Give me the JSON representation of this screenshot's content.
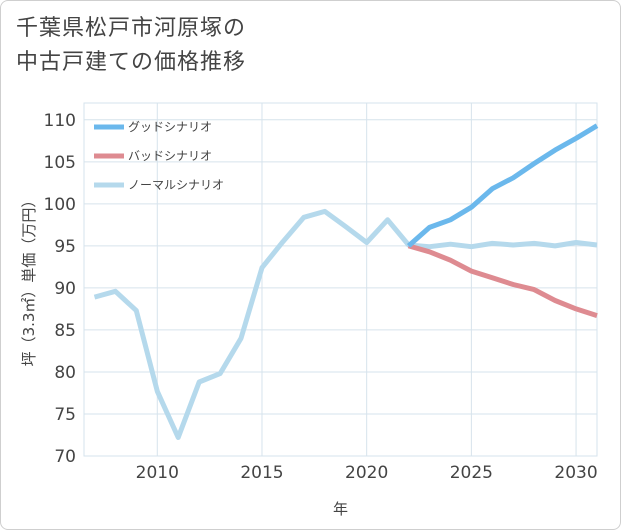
{
  "title_lines": [
    "千葉県松戸市河原塚の",
    "中古戸建ての価格推移"
  ],
  "chart_data": {
    "type": "line",
    "title": "千葉県松戸市河原塚の中古戸建ての価格推移",
    "xlabel": "年",
    "ylabel": "坪（3.3㎡）単価（万円）",
    "xlim": [
      2006.5,
      2031
    ],
    "ylim": [
      70,
      112
    ],
    "x_ticks": [
      2010,
      2015,
      2020,
      2025,
      2030
    ],
    "y_ticks": [
      70,
      75,
      80,
      85,
      90,
      95,
      100,
      105,
      110
    ],
    "series": [
      {
        "name": "グッドシナリオ",
        "color": "#6bb8ec",
        "x": [
          2022,
          2023,
          2024,
          2025,
          2026,
          2027,
          2028,
          2029,
          2030,
          2031
        ],
        "values": [
          95.0,
          97.2,
          98.1,
          99.6,
          101.8,
          103.1,
          104.8,
          106.4,
          107.8,
          109.3
        ]
      },
      {
        "name": "バッドシナリオ",
        "color": "#de8b91",
        "x": [
          2022,
          2023,
          2024,
          2025,
          2026,
          2027,
          2028,
          2029,
          2030,
          2031
        ],
        "values": [
          95.0,
          94.3,
          93.3,
          92.0,
          91.2,
          90.4,
          89.8,
          88.5,
          87.5,
          86.7
        ]
      },
      {
        "name": "ノーマルシナリオ",
        "color": "#b5d9ec",
        "x": [
          2007,
          2008,
          2009,
          2010,
          2011,
          2012,
          2013,
          2014,
          2015,
          2016,
          2017,
          2018,
          2019,
          2020,
          2021,
          2022,
          2023,
          2024,
          2025,
          2026,
          2027,
          2028,
          2029,
          2030,
          2031
        ],
        "values": [
          88.9,
          89.6,
          87.3,
          77.7,
          72.2,
          78.8,
          79.8,
          84.0,
          92.4,
          95.5,
          98.4,
          99.1,
          97.3,
          95.4,
          98.1,
          95.1,
          94.9,
          95.2,
          94.9,
          95.3,
          95.1,
          95.3,
          95.0,
          95.4,
          95.1
        ]
      }
    ]
  }
}
